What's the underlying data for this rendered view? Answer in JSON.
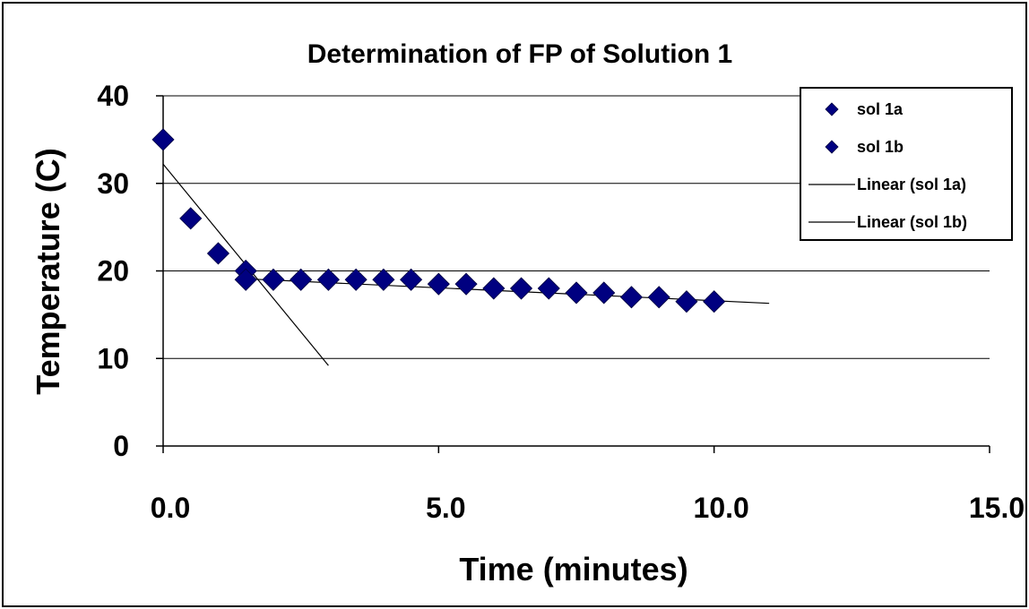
{
  "chart_data": {
    "type": "scatter",
    "title": "Determination of FP of Solution 1",
    "xlabel": "Time (minutes)",
    "ylabel": "Temperature (C)",
    "xlim": [
      0,
      15
    ],
    "ylim": [
      0,
      40
    ],
    "x_ticks": [
      "0.0",
      "5.0",
      "10.0",
      "15.0"
    ],
    "x_tick_values": [
      0,
      5,
      10,
      15
    ],
    "y_ticks": [
      "0",
      "10",
      "20",
      "30",
      "40"
    ],
    "y_tick_values": [
      0,
      10,
      20,
      30,
      40
    ],
    "grid": "horizontal",
    "legend_position": "top-right",
    "marker_color": "#000080",
    "line_color": "#000000",
    "series": [
      {
        "name": "sol 1a",
        "x": [
          0,
          0.5,
          1.0,
          1.5
        ],
        "y": [
          35,
          26,
          22,
          20
        ]
      },
      {
        "name": "sol 1b",
        "x": [
          1.5,
          2.0,
          2.5,
          3.0,
          3.5,
          4.0,
          4.5,
          5.0,
          5.5,
          6.0,
          6.5,
          7.0,
          7.5,
          8.0,
          8.5,
          9.0,
          9.5,
          10.0
        ],
        "y": [
          19,
          19,
          19,
          19,
          19,
          19,
          19,
          18.5,
          18.5,
          18,
          18,
          18,
          17.5,
          17.5,
          17,
          17,
          16.5,
          16.5
        ]
      }
    ],
    "trendlines": [
      {
        "name": "Linear (sol 1a)",
        "x": [
          0,
          3.0
        ],
        "y": [
          32.2,
          9.2
        ]
      },
      {
        "name": "Linear (sol 1b)",
        "x": [
          1.5,
          11.0
        ],
        "y": [
          19.1,
          16.3
        ]
      }
    ]
  }
}
